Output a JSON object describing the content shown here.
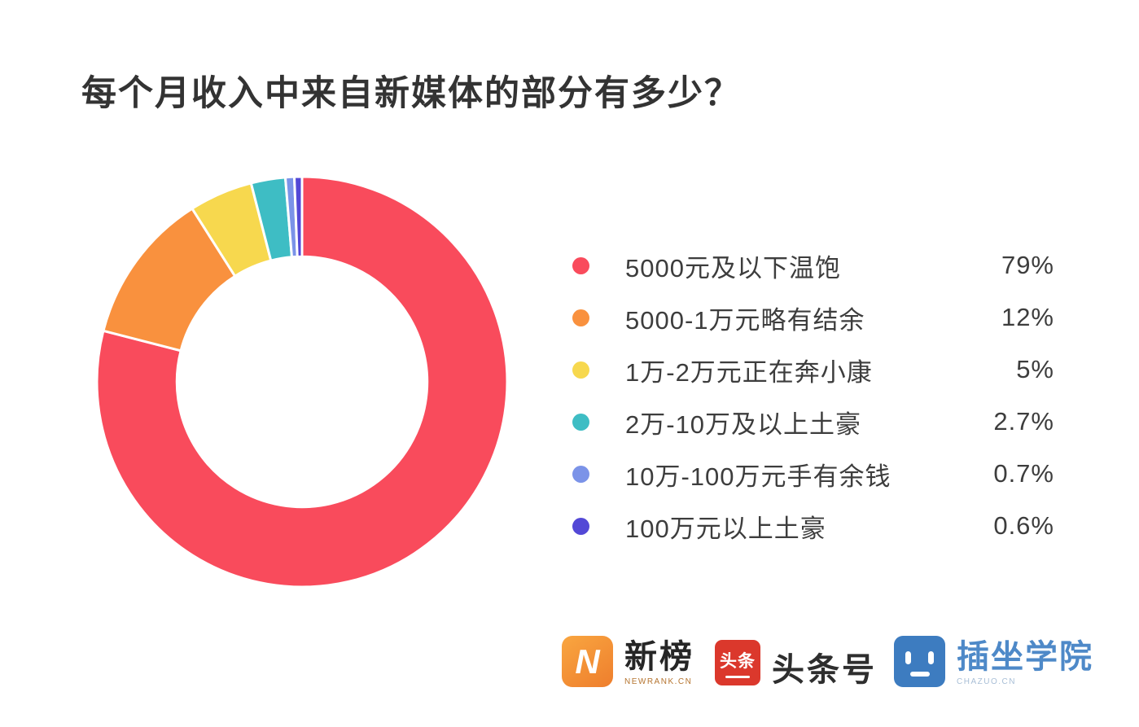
{
  "page": {
    "title": "每个月收入中来自新媒体的部分有多少？",
    "background_color": "#ffffff"
  },
  "chart_data": {
    "type": "pie",
    "subtype": "donut",
    "title": "每个月收入中来自新媒体的部分有多少？",
    "start_angle_deg": -90,
    "direction": "clockwise",
    "inner_radius_ratio": 0.61,
    "legend_position": "right",
    "separator_color": "#ffffff",
    "items": [
      {
        "label": "5000元及以下温饱",
        "value": 79,
        "pct_label": "79%",
        "color": "#f94b5c"
      },
      {
        "label": "5000-1万元略有结余",
        "value": 12,
        "pct_label": "12%",
        "color": "#f9913e"
      },
      {
        "label": "1万-2万元正在奔小康",
        "value": 5,
        "pct_label": "5%",
        "color": "#f7d84e"
      },
      {
        "label": "2万-10万及以上土豪",
        "value": 2.7,
        "pct_label": "2.7%",
        "color": "#3ebdc4"
      },
      {
        "label": "10万-100万元手有余钱",
        "value": 0.7,
        "pct_label": "0.7%",
        "color": "#7b93e8"
      },
      {
        "label": "100万元以上土豪",
        "value": 0.6,
        "pct_label": "0.6%",
        "color": "#5348d6"
      }
    ]
  },
  "footer": {
    "newrank": {
      "icon_letter": "N",
      "name": "新榜",
      "sub": "NEWRANK.CN",
      "brand_color": "#f2923b"
    },
    "toutiao": {
      "badge": "头条",
      "name": "头条号",
      "brand_color": "#db382c"
    },
    "chazuo": {
      "name": "插坐学院",
      "sub": "CHAZUO.CN",
      "brand_color": "#3d7cc0"
    }
  }
}
